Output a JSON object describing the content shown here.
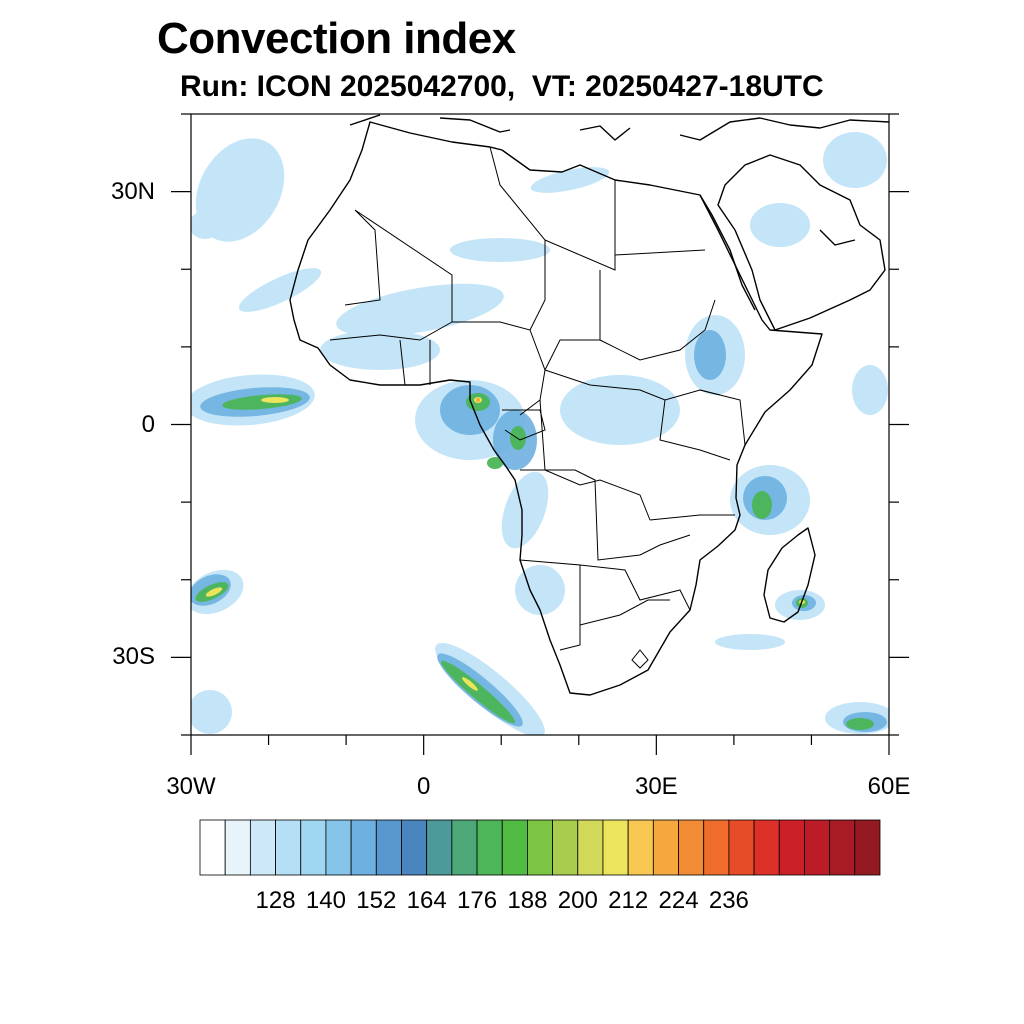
{
  "title": "Convection index",
  "subtitle": "Run: ICON 2025042700,  VT: 20250427-18UTC",
  "map": {
    "extent": {
      "lon": [
        -30,
        60
      ],
      "lat": [
        -40,
        40
      ]
    },
    "lat_ticks": [
      {
        "value": 30,
        "label": "30N"
      },
      {
        "value": 0,
        "label": "0"
      },
      {
        "value": -30,
        "label": "30S"
      }
    ],
    "lon_ticks": [
      {
        "value": -30,
        "label": "30W"
      },
      {
        "value": 0,
        "label": "0"
      },
      {
        "value": 30,
        "label": "30E"
      },
      {
        "value": 60,
        "label": "60E"
      }
    ],
    "features": [
      "Africa",
      "Arabian Peninsula",
      "Madagascar",
      "country borders",
      "coastlines"
    ]
  },
  "colorbar": {
    "colors": [
      "#ffffff",
      "#e8f4fb",
      "#cde8f7",
      "#b4dff5",
      "#9fd6f2",
      "#86c4ea",
      "#6eb0e0",
      "#5898cf",
      "#4a86bd",
      "#4c9a9a",
      "#4ca878",
      "#4cb658",
      "#52bb44",
      "#7cc444",
      "#a8cc4c",
      "#d2d858",
      "#ece45c",
      "#f6c852",
      "#f4a83e",
      "#f28c34",
      "#ee6c2c",
      "#e64c28",
      "#dc3028",
      "#cc2028",
      "#bc1c28",
      "#a81a24",
      "#921a20"
    ],
    "labels": [
      "128",
      "140",
      "152",
      "164",
      "176",
      "188",
      "200",
      "212",
      "224",
      "236"
    ]
  }
}
